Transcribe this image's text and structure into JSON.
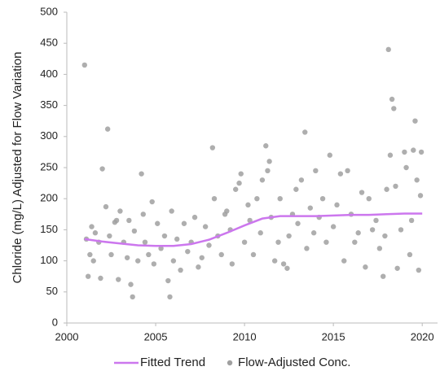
{
  "chart_data": {
    "type": "scatter",
    "y_label": "Chloride (mg/L) Adjusted for Flow Variation",
    "xlim": [
      2000,
      2021
    ],
    "xticks": [
      2000,
      2005,
      2010,
      2015,
      2020
    ],
    "ylim": [
      0,
      500
    ],
    "yticks": [
      0,
      50,
      100,
      150,
      200,
      250,
      300,
      350,
      400,
      450,
      500
    ],
    "grid": false,
    "legend": "bottom",
    "series": [
      {
        "name": "Fitted Trend",
        "type": "line",
        "color": "#cc77ee",
        "x": [
          2001,
          2002,
          2003,
          2004,
          2005,
          2006,
          2007,
          2008,
          2009,
          2010,
          2011,
          2012,
          2013,
          2014,
          2015,
          2016,
          2017,
          2018,
          2019,
          2020
        ],
        "values": [
          135,
          131,
          128,
          125,
          124,
          124,
          127,
          134,
          145,
          157,
          168,
          172,
          172,
          172,
          173,
          174,
          174,
          175,
          176,
          176
        ]
      },
      {
        "name": "Flow-Adjusted Conc.",
        "type": "scatter",
        "color": "#a0a0a0",
        "x": [
          2001.0,
          2001.1,
          2001.2,
          2001.3,
          2001.4,
          2001.5,
          2001.6,
          2001.8,
          2001.9,
          2002.0,
          2002.2,
          2002.3,
          2002.4,
          2002.5,
          2002.7,
          2002.8,
          2002.9,
          2003.0,
          2003.2,
          2003.4,
          2003.5,
          2003.6,
          2003.7,
          2003.8,
          2004.0,
          2004.2,
          2004.3,
          2004.4,
          2004.6,
          2004.8,
          2004.9,
          2005.1,
          2005.3,
          2005.5,
          2005.7,
          2005.8,
          2005.9,
          2006.0,
          2006.2,
          2006.4,
          2006.6,
          2006.8,
          2007.0,
          2007.2,
          2007.4,
          2007.6,
          2007.8,
          2008.0,
          2008.2,
          2008.3,
          2008.5,
          2008.7,
          2008.9,
          2009.0,
          2009.2,
          2009.3,
          2009.5,
          2009.7,
          2009.8,
          2010.0,
          2010.2,
          2010.3,
          2010.5,
          2010.7,
          2010.9,
          2011.0,
          2011.2,
          2011.3,
          2011.4,
          2011.5,
          2011.7,
          2011.9,
          2012.0,
          2012.2,
          2012.4,
          2012.5,
          2012.7,
          2012.9,
          2013.0,
          2013.2,
          2013.4,
          2013.5,
          2013.7,
          2013.9,
          2014.0,
          2014.2,
          2014.4,
          2014.6,
          2014.8,
          2015.0,
          2015.2,
          2015.4,
          2015.6,
          2015.8,
          2016.0,
          2016.2,
          2016.4,
          2016.6,
          2016.8,
          2017.0,
          2017.2,
          2017.4,
          2017.6,
          2017.8,
          2017.9,
          2018.0,
          2018.1,
          2018.2,
          2018.3,
          2018.4,
          2018.5,
          2018.6,
          2018.8,
          2019.0,
          2019.1,
          2019.3,
          2019.4,
          2019.5,
          2019.6,
          2019.7,
          2019.8,
          2019.9,
          2019.95
        ],
        "values": [
          415,
          135,
          75,
          110,
          155,
          100,
          145,
          130,
          72,
          248,
          187,
          312,
          140,
          110,
          162,
          165,
          70,
          180,
          130,
          105,
          165,
          62,
          42,
          148,
          100,
          240,
          175,
          130,
          110,
          195,
          95,
          160,
          120,
          140,
          68,
          42,
          180,
          100,
          135,
          85,
          160,
          115,
          130,
          170,
          90,
          105,
          155,
          125,
          282,
          200,
          140,
          110,
          175,
          180,
          150,
          95,
          215,
          225,
          240,
          130,
          190,
          165,
          110,
          200,
          145,
          230,
          285,
          245,
          260,
          170,
          100,
          130,
          200,
          95,
          88,
          140,
          175,
          215,
          160,
          230,
          307,
          120,
          185,
          145,
          245,
          170,
          200,
          130,
          270,
          155,
          190,
          240,
          100,
          245,
          175,
          130,
          145,
          210,
          90,
          200,
          150,
          165,
          120,
          75,
          140,
          215,
          440,
          270,
          360,
          345,
          220,
          88,
          150,
          275,
          250,
          110,
          165,
          278,
          325,
          230,
          85,
          205,
          275
        ]
      }
    ]
  }
}
